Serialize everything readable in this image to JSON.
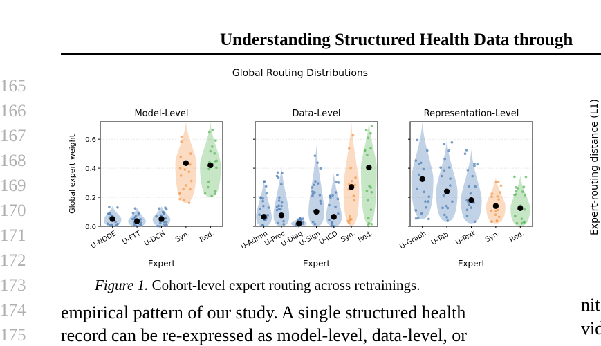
{
  "header": {
    "title": "Understanding Structured Health Data through"
  },
  "line_numbers": [
    "165",
    "166",
    "167",
    "168",
    "169",
    "170",
    "171",
    "172",
    "173",
    "174",
    "175"
  ],
  "figure": {
    "suptitle": "Global Routing Distributions",
    "right_panel_ylabel": "Expert-routing distance (L1)",
    "caption_label": "Figure 1.",
    "caption_text": " Cohort-level expert routing across retrainings."
  },
  "body": {
    "line1": "empirical pattern of our study. A single structured health",
    "line2": "record can be re-expressed as model-level, data-level, or",
    "right_line1": "nit",
    "right_line2": "vid"
  },
  "colors": {
    "blue": "#4f7fb6",
    "orange": "#f39a4f",
    "green": "#5cb85c",
    "grid": "#d8d8d8"
  },
  "chart_data": [
    {
      "type": "violin",
      "title": "Model-Level",
      "xlabel": "Expert",
      "ylabel": "Global expert weight",
      "ylim": [
        0,
        0.72
      ],
      "yticks": [
        "0.0",
        "0.2",
        "0.4",
        "0.6"
      ],
      "categories": [
        "U-NODE",
        "U-FTT",
        "U-DCN",
        "Syn.",
        "Red."
      ],
      "means": [
        0.05,
        0.035,
        0.05,
        0.435,
        0.42
      ],
      "mins": [
        0.0,
        0.0,
        0.0,
        0.16,
        0.2
      ],
      "maxs": [
        0.14,
        0.13,
        0.14,
        0.72,
        0.72
      ],
      "color_keys": [
        "blue",
        "blue",
        "blue",
        "orange",
        "green"
      ]
    },
    {
      "type": "violin",
      "title": "Data-Level",
      "xlabel": "Expert",
      "ylim": [
        0,
        0.72
      ],
      "categories": [
        "U-Admin",
        "U-Proc",
        "U-Diag",
        "U-Sign",
        "U-ICD",
        "Syn.",
        "Red."
      ],
      "means": [
        0.065,
        0.075,
        0.02,
        0.1,
        0.065,
        0.27,
        0.405
      ],
      "mins": [
        0.0,
        0.0,
        0.0,
        0.0,
        0.0,
        0.0,
        0.01
      ],
      "maxs": [
        0.32,
        0.42,
        0.06,
        0.56,
        0.37,
        0.72,
        0.72
      ],
      "color_keys": [
        "blue",
        "blue",
        "blue",
        "blue",
        "blue",
        "orange",
        "green"
      ]
    },
    {
      "type": "violin",
      "title": "Representation-Level",
      "xlabel": "Expert",
      "ylim": [
        0,
        0.72
      ],
      "categories": [
        "U-Graph",
        "U-Tab.",
        "U-Text",
        "Syn.",
        "Red."
      ],
      "means": [
        0.325,
        0.24,
        0.18,
        0.14,
        0.125
      ],
      "mins": [
        0.05,
        0.03,
        0.02,
        0.02,
        0.0
      ],
      "maxs": [
        0.72,
        0.6,
        0.53,
        0.34,
        0.35
      ],
      "color_keys": [
        "blue",
        "blue",
        "blue",
        "orange",
        "green"
      ]
    }
  ]
}
